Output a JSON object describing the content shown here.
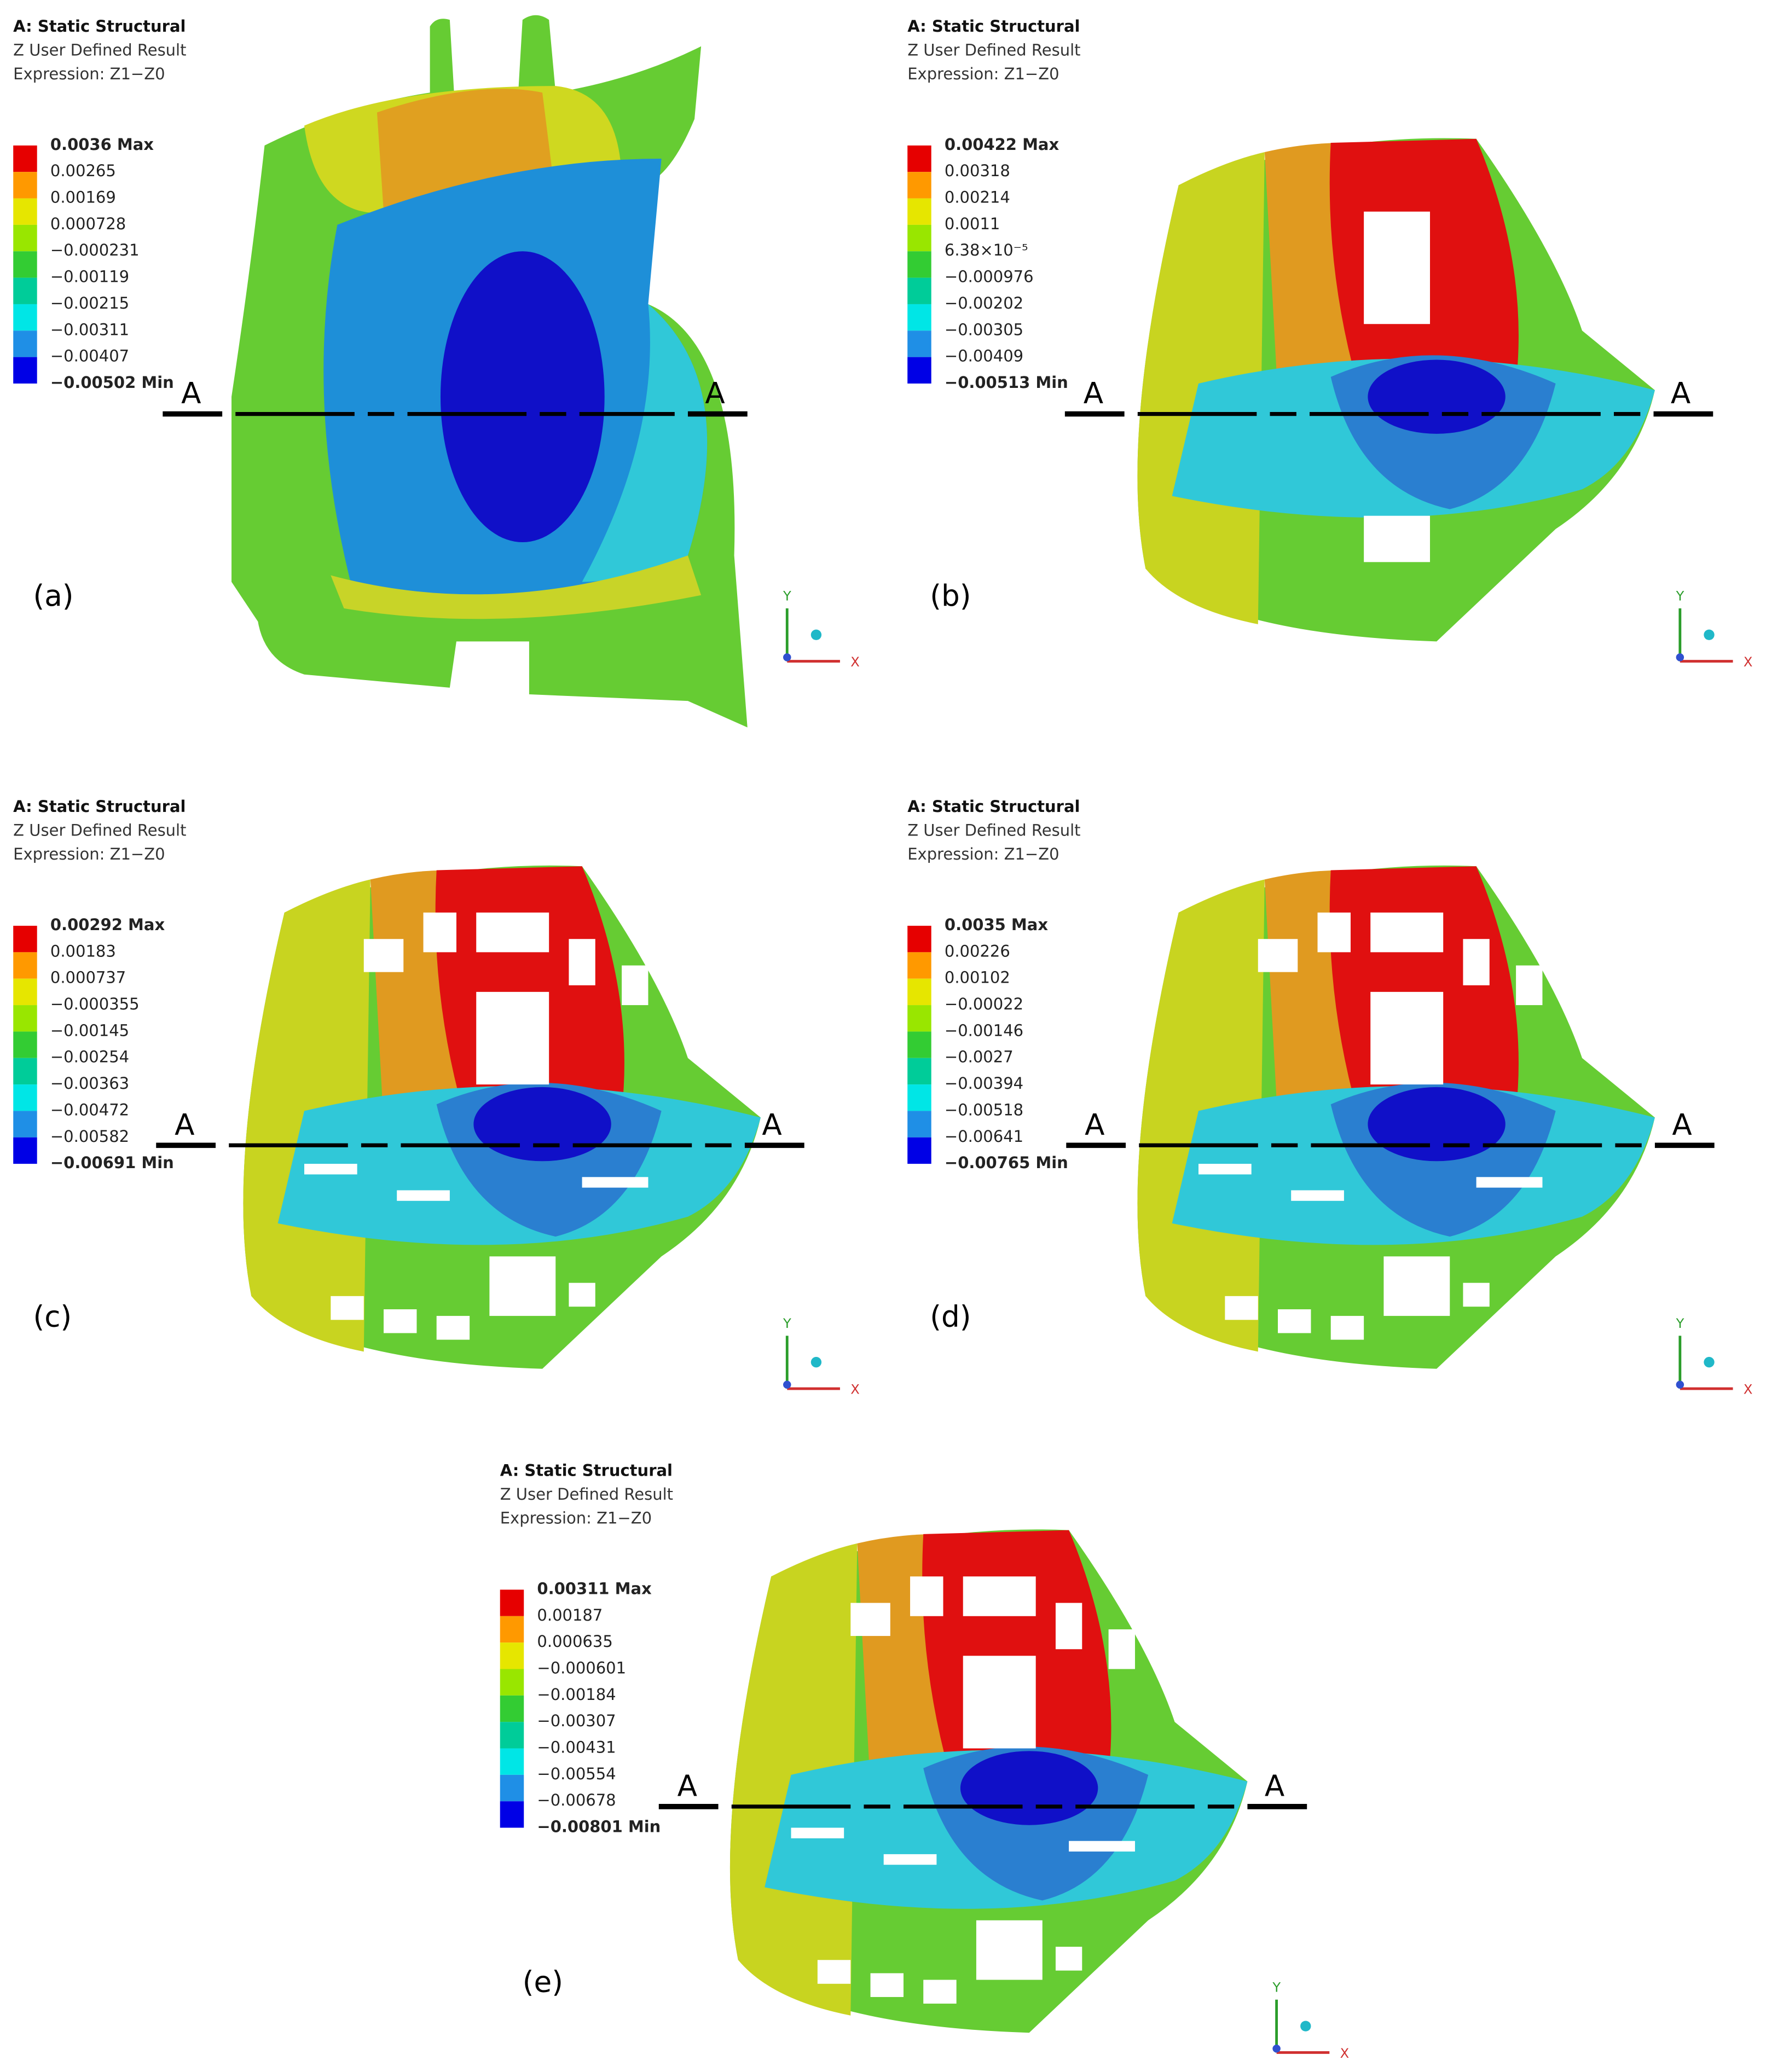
{
  "colors": [
    "#e60000",
    "#ff9900",
    "#e6e600",
    "#99e600",
    "#33cc33",
    "#00cc99",
    "#00e6e6",
    "#1f8fe6",
    "#0000e6"
  ],
  "panels": [
    {
      "label": "(a)",
      "header": [
        "A: Static Structural",
        "Z User Defined Result",
        "Expression: Z1−Z0"
      ],
      "legend": [
        "0.0036 Max",
        "0.00265",
        "0.00169",
        "0.000728",
        "−0.000231",
        "−0.00119",
        "−0.00215",
        "−0.00311",
        "−0.00407",
        "−0.00502 Min"
      ],
      "section": [
        "A",
        "A"
      ],
      "axes": [
        "X",
        "Y"
      ]
    },
    {
      "label": "(b)",
      "header": [
        "A: Static Structural",
        "Z User Defined Result",
        "Expression: Z1−Z0"
      ],
      "legend": [
        "0.00422 Max",
        "0.00318",
        "0.00214",
        "0.0011",
        "6.38×10⁻⁵",
        "−0.000976",
        "−0.00202",
        "−0.00305",
        "−0.00409",
        "−0.00513 Min"
      ],
      "section": [
        "A",
        "A"
      ],
      "axes": [
        "X",
        "Y"
      ]
    },
    {
      "label": "(c)",
      "header": [
        "A: Static Structural",
        "Z User Defined Result",
        "Expression: Z1−Z0"
      ],
      "legend": [
        "0.00292 Max",
        "0.00183",
        "0.000737",
        "−0.000355",
        "−0.00145",
        "−0.00254",
        "−0.00363",
        "−0.00472",
        "−0.00582",
        "−0.00691 Min"
      ],
      "section": [
        "A",
        "A"
      ],
      "axes": [
        "X",
        "Y"
      ]
    },
    {
      "label": "(d)",
      "header": [
        "A: Static Structural",
        "Z User Defined Result",
        "Expression: Z1−Z0"
      ],
      "legend": [
        "0.0035 Max",
        "0.00226",
        "0.00102",
        "−0.00022",
        "−0.00146",
        "−0.0027",
        "−0.00394",
        "−0.00518",
        "−0.00641",
        "−0.00765 Min"
      ],
      "section": [
        "A",
        "A"
      ],
      "axes": [
        "X",
        "Y"
      ]
    },
    {
      "label": "(e)",
      "header": [
        "A: Static Structural",
        "Z User Defined Result",
        "Expression: Z1−Z0"
      ],
      "legend": [
        "0.00311 Max",
        "0.00187",
        "0.000635",
        "−0.000601",
        "−0.00184",
        "−0.00307",
        "−0.00431",
        "−0.00554",
        "−0.00678",
        "−0.00801 Min"
      ],
      "section": [
        "A",
        "A"
      ],
      "axes": [
        "X",
        "Y"
      ]
    }
  ]
}
